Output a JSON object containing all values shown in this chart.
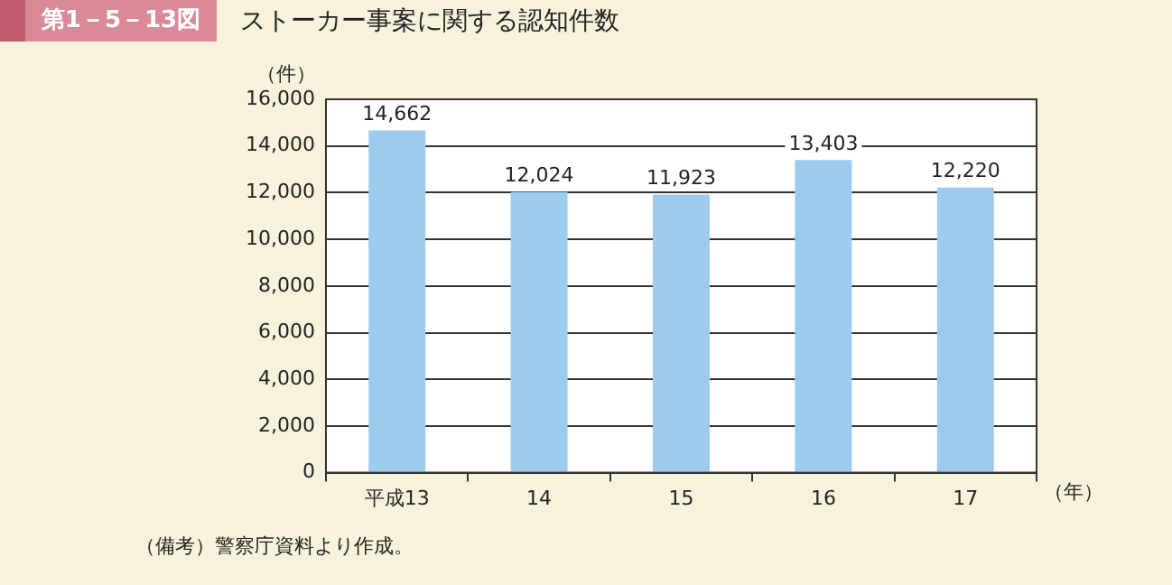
{
  "chart_data": {
    "type": "bar",
    "title": "ストーカー事案に関する認知件数",
    "ylabel": "（件）",
    "xlabel": "（年）",
    "annotations": [
      "第1－5－13図",
      "（備考）警察庁資料より作成。"
    ],
    "categories": [
      "平成13",
      "14",
      "15",
      "16",
      "17"
    ],
    "values": [
      14662,
      12024,
      11923,
      13403,
      12220
    ],
    "color": "#9ccbee",
    "value_labels": [
      "14,662",
      "12,024",
      "11,923",
      "13,403",
      "12,220"
    ],
    "ylim": [
      0,
      16000
    ],
    "yticks": [
      0,
      {
        "value": 2000,
        "label": "2,000"
      },
      {
        "value": 4000,
        "label": "4,000"
      },
      {
        "value": 6000,
        "label": "6,000"
      },
      {
        "value": 8000,
        "label": "8,000"
      },
      {
        "value": 10000,
        "label": "10,000"
      },
      {
        "value": 12000,
        "label": "12,000"
      },
      {
        "value": 14000,
        "label": "14,000"
      },
      {
        "value": 16000,
        "label": "16,000"
      }
    ],
    "grid": "y"
  }
}
